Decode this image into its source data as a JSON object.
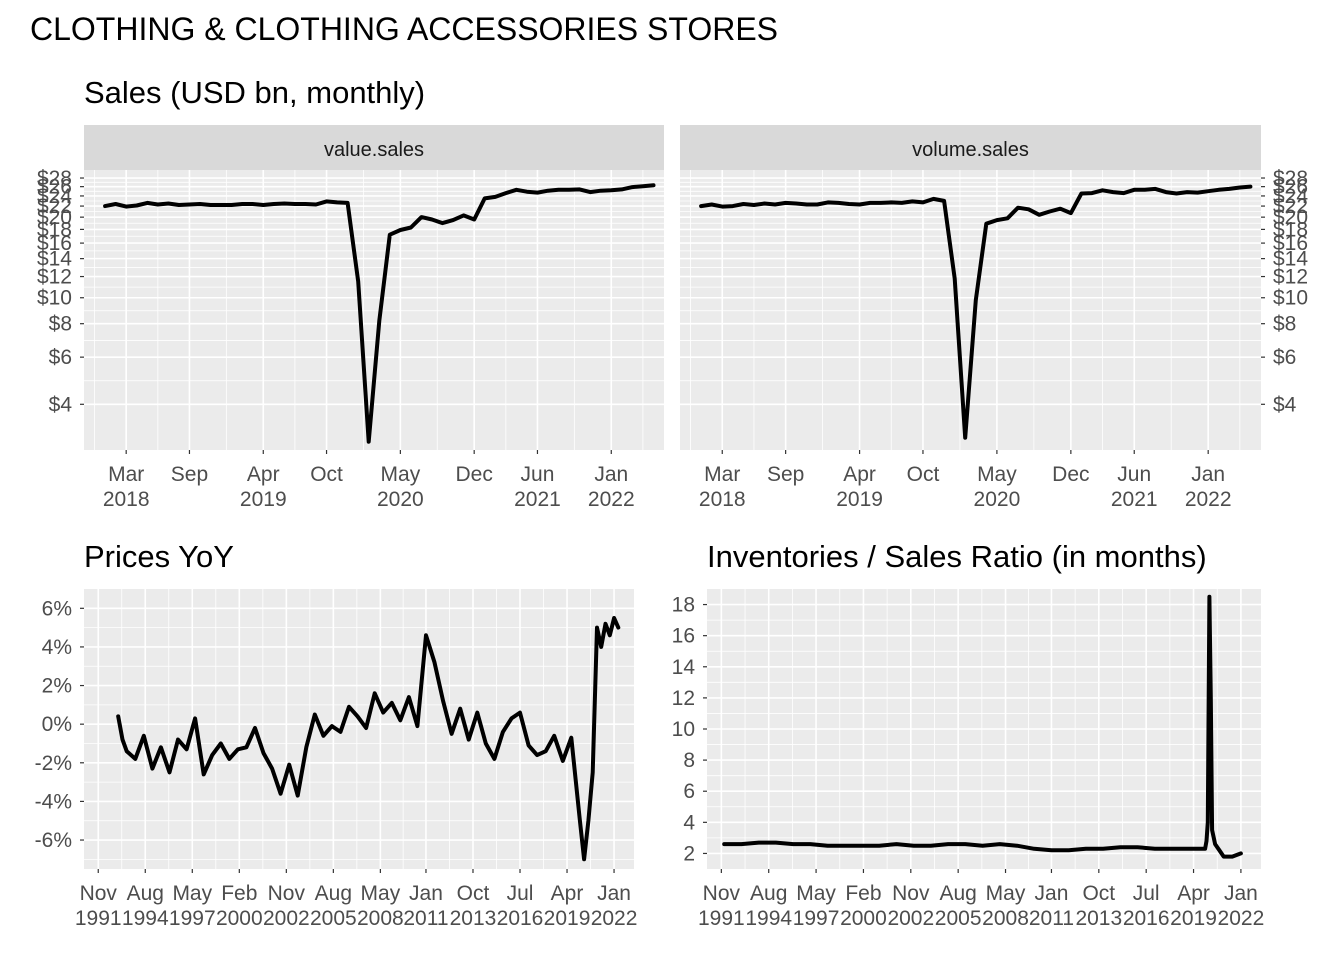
{
  "title": "CLOTHING & CLOTHING ACCESSORIES STORES",
  "chart_data": [
    {
      "id": "sales",
      "type": "line",
      "title": "Sales (USD bn, monthly)",
      "scale": "log",
      "y_axis": {
        "min": 2.7,
        "max": 30,
        "ticks": [
          4,
          6,
          8,
          10,
          12,
          14,
          16,
          18,
          20,
          22,
          24,
          26,
          28
        ],
        "tick_labels": [
          "$4",
          "$6",
          "$8",
          "$10",
          "$12",
          "$14",
          "$16",
          "$18",
          "$20",
          "$22",
          "$24",
          "$26",
          "$28"
        ]
      },
      "x_axis": {
        "min": "2017-11-01",
        "max": "2022-06-01",
        "ticks": [
          "2018-03-01",
          "2018-09-01",
          "2019-04-01",
          "2019-10-01",
          "2020-05-01",
          "2020-12-01",
          "2021-06-01",
          "2022-01-01"
        ],
        "tick_labels": [
          [
            "Mar",
            "2018"
          ],
          [
            "Sep",
            ""
          ],
          [
            "Apr",
            "2019"
          ],
          [
            "Oct",
            ""
          ],
          [
            "May",
            "2020"
          ],
          [
            "Dec",
            ""
          ],
          [
            "Jun",
            "2021"
          ],
          [
            "Jan",
            "2022"
          ]
        ]
      },
      "facets": [
        {
          "label": "value.sales",
          "x": [
            "2018-01-01",
            "2018-02-01",
            "2018-03-01",
            "2018-04-01",
            "2018-05-01",
            "2018-06-01",
            "2018-07-01",
            "2018-08-01",
            "2018-09-01",
            "2018-10-01",
            "2018-11-01",
            "2018-12-01",
            "2019-01-01",
            "2019-02-01",
            "2019-03-01",
            "2019-04-01",
            "2019-05-01",
            "2019-06-01",
            "2019-07-01",
            "2019-08-01",
            "2019-09-01",
            "2019-10-01",
            "2019-11-01",
            "2019-12-01",
            "2020-01-01",
            "2020-02-01",
            "2020-03-01",
            "2020-04-01",
            "2020-05-01",
            "2020-06-01",
            "2020-07-01",
            "2020-08-01",
            "2020-09-01",
            "2020-10-01",
            "2020-11-01",
            "2020-12-01",
            "2021-01-01",
            "2021-02-01",
            "2021-03-01",
            "2021-04-01",
            "2021-05-01",
            "2021-06-01",
            "2021-07-01",
            "2021-08-01",
            "2021-09-01",
            "2021-10-01",
            "2021-11-01",
            "2021-12-01",
            "2022-01-01",
            "2022-02-01",
            "2022-03-01",
            "2022-04-01",
            "2022-05-01"
          ],
          "y": [
            22.0,
            22.4,
            21.9,
            22.1,
            22.6,
            22.3,
            22.5,
            22.2,
            22.3,
            22.4,
            22.2,
            22.2,
            22.2,
            22.4,
            22.4,
            22.2,
            22.4,
            22.5,
            22.4,
            22.4,
            22.3,
            22.9,
            22.7,
            22.6,
            11.5,
            2.9,
            8.2,
            17.2,
            17.9,
            18.3,
            20.0,
            19.6,
            19.0,
            19.5,
            20.3,
            19.6,
            23.5,
            23.8,
            24.6,
            25.3,
            24.9,
            24.7,
            25.1,
            25.3,
            25.3,
            25.4,
            24.8,
            25.1,
            25.2,
            25.4,
            25.9,
            26.1,
            26.3
          ]
        },
        {
          "label": "volume.sales",
          "x": [
            "2018-01-01",
            "2018-02-01",
            "2018-03-01",
            "2018-04-01",
            "2018-05-01",
            "2018-06-01",
            "2018-07-01",
            "2018-08-01",
            "2018-09-01",
            "2018-10-01",
            "2018-11-01",
            "2018-12-01",
            "2019-01-01",
            "2019-02-01",
            "2019-03-01",
            "2019-04-01",
            "2019-05-01",
            "2019-06-01",
            "2019-07-01",
            "2019-08-01",
            "2019-09-01",
            "2019-10-01",
            "2019-11-01",
            "2019-12-01",
            "2020-01-01",
            "2020-02-01",
            "2020-03-01",
            "2020-04-01",
            "2020-05-01",
            "2020-06-01",
            "2020-07-01",
            "2020-08-01",
            "2020-09-01",
            "2020-10-01",
            "2020-11-01",
            "2020-12-01",
            "2021-01-01",
            "2021-02-01",
            "2021-03-01",
            "2021-04-01",
            "2021-05-01",
            "2021-06-01",
            "2021-07-01",
            "2021-08-01",
            "2021-09-01",
            "2021-10-01",
            "2021-11-01",
            "2021-12-01",
            "2022-01-01",
            "2022-02-01",
            "2022-03-01",
            "2022-04-01",
            "2022-05-01"
          ],
          "y": [
            22.0,
            22.3,
            21.9,
            22.0,
            22.4,
            22.2,
            22.5,
            22.3,
            22.6,
            22.5,
            22.3,
            22.3,
            22.7,
            22.6,
            22.4,
            22.3,
            22.6,
            22.6,
            22.7,
            22.6,
            22.9,
            22.7,
            23.4,
            23.0,
            11.8,
            3.0,
            9.8,
            18.9,
            19.5,
            19.8,
            21.7,
            21.4,
            20.4,
            21.0,
            21.5,
            20.7,
            24.5,
            24.6,
            25.2,
            24.8,
            24.6,
            25.3,
            25.3,
            25.5,
            24.8,
            24.5,
            24.8,
            24.7,
            25.0,
            25.3,
            25.5,
            25.8,
            26.0
          ]
        }
      ]
    },
    {
      "id": "prices",
      "type": "line",
      "title": "Prices YoY",
      "y_axis": {
        "min": -7.5,
        "max": 7.0,
        "ticks": [
          -6,
          -4,
          -2,
          0,
          2,
          4,
          6
        ],
        "tick_labels": [
          "-6%",
          "-4%",
          "-2%",
          "0%",
          "2%",
          "4%",
          "6%"
        ]
      },
      "x_axis": {
        "min": "1991-01-01",
        "max": "2023-03-01",
        "ticks": [
          "1991-11-01",
          "1994-08-01",
          "1997-05-01",
          "2000-02-01",
          "2002-11-01",
          "2005-08-01",
          "2008-05-01",
          "2011-01-01",
          "2013-10-01",
          "2016-07-01",
          "2019-04-01",
          "2022-01-01"
        ],
        "tick_labels": [
          [
            "Nov",
            "1991"
          ],
          [
            "Aug",
            "1994"
          ],
          [
            "May",
            "1997"
          ],
          [
            "Feb",
            "2000"
          ],
          [
            "Nov",
            "2002"
          ],
          [
            "Aug",
            "2005"
          ],
          [
            "May",
            "2008"
          ],
          [
            "Jan",
            "2011"
          ],
          [
            "Oct",
            "2013"
          ],
          [
            "Jul",
            "2016"
          ],
          [
            "Apr",
            "2019"
          ],
          [
            "Jan",
            "2022"
          ]
        ]
      },
      "x": [
        1993.0,
        1993.25,
        1993.5,
        1994.0,
        1994.5,
        1995.0,
        1995.5,
        1996.0,
        1996.5,
        1997.0,
        1997.5,
        1998.0,
        1998.5,
        1999.0,
        1999.5,
        2000.0,
        2000.5,
        2001.0,
        2001.5,
        2002.0,
        2002.5,
        2003.0,
        2003.5,
        2004.0,
        2004.5,
        2005.0,
        2005.5,
        2006.0,
        2006.5,
        2007.0,
        2007.5,
        2008.0,
        2008.5,
        2009.0,
        2009.5,
        2010.0,
        2010.5,
        2011.0,
        2011.5,
        2012.0,
        2012.5,
        2013.0,
        2013.5,
        2014.0,
        2014.5,
        2015.0,
        2015.5,
        2016.0,
        2016.5,
        2017.0,
        2017.5,
        2018.0,
        2018.5,
        2019.0,
        2019.5,
        2020.0,
        2020.25,
        2020.5,
        2020.75,
        2021.0,
        2021.25,
        2021.5,
        2021.75,
        2022.0,
        2022.25
      ],
      "y": [
        0.4,
        -0.8,
        -1.4,
        -1.8,
        -0.6,
        -2.3,
        -1.2,
        -2.5,
        -0.8,
        -1.3,
        0.3,
        -2.6,
        -1.6,
        -1.0,
        -1.8,
        -1.3,
        -1.2,
        -0.2,
        -1.5,
        -2.3,
        -3.6,
        -2.1,
        -3.7,
        -1.2,
        0.5,
        -0.6,
        -0.1,
        -0.4,
        0.9,
        0.4,
        -0.2,
        1.6,
        0.6,
        1.1,
        0.2,
        1.4,
        -0.1,
        4.6,
        3.2,
        1.2,
        -0.5,
        0.8,
        -0.8,
        0.6,
        -1.0,
        -1.8,
        -0.4,
        0.3,
        0.6,
        -1.1,
        -1.6,
        -1.4,
        -0.6,
        -1.9,
        -0.7,
        -5.0,
        -7.0,
        -5.0,
        -2.5,
        5.0,
        4.0,
        5.2,
        4.6,
        5.5,
        5.0
      ]
    },
    {
      "id": "inventories",
      "type": "line",
      "title": "Inventories / Sales Ratio (in months)",
      "y_axis": {
        "min": 1.0,
        "max": 19.0,
        "ticks": [
          2,
          4,
          6,
          8,
          10,
          12,
          14,
          16,
          18
        ],
        "tick_labels": [
          "2",
          "4",
          "6",
          "8",
          "10",
          "12",
          "14",
          "16",
          "18"
        ]
      },
      "x_axis": {
        "min": "1991-01-01",
        "max": "2023-03-01",
        "ticks": [
          "1991-11-01",
          "1994-08-01",
          "1997-05-01",
          "2000-02-01",
          "2002-11-01",
          "2005-08-01",
          "2008-05-01",
          "2011-01-01",
          "2013-10-01",
          "2016-07-01",
          "2019-04-01",
          "2022-01-01"
        ],
        "tick_labels": [
          [
            "Nov",
            "1991"
          ],
          [
            "Aug",
            "1994"
          ],
          [
            "May",
            "1997"
          ],
          [
            "Feb",
            "2000"
          ],
          [
            "Nov",
            "2002"
          ],
          [
            "Aug",
            "2005"
          ],
          [
            "May",
            "2008"
          ],
          [
            "Jan",
            "2011"
          ],
          [
            "Oct",
            "2013"
          ],
          [
            "Jul",
            "2016"
          ],
          [
            "Apr",
            "2019"
          ],
          [
            "Jan",
            "2022"
          ]
        ]
      },
      "x": [
        1992.0,
        1993.0,
        1994.0,
        1995.0,
        1996.0,
        1997.0,
        1998.0,
        1999.0,
        2000.0,
        2001.0,
        2002.0,
        2003.0,
        2004.0,
        2005.0,
        2006.0,
        2007.0,
        2008.0,
        2009.0,
        2010.0,
        2011.0,
        2012.0,
        2013.0,
        2014.0,
        2015.0,
        2016.0,
        2017.0,
        2018.0,
        2019.0,
        2019.92,
        2020.0,
        2020.08,
        2020.17,
        2020.25,
        2020.33,
        2020.5,
        2020.75,
        2021.0,
        2021.5,
        2022.0
      ],
      "y": [
        2.6,
        2.6,
        2.7,
        2.7,
        2.6,
        2.6,
        2.5,
        2.5,
        2.5,
        2.5,
        2.6,
        2.5,
        2.5,
        2.6,
        2.6,
        2.5,
        2.6,
        2.5,
        2.3,
        2.2,
        2.2,
        2.3,
        2.3,
        2.4,
        2.4,
        2.3,
        2.3,
        2.3,
        2.3,
        2.8,
        4.0,
        18.5,
        12.0,
        3.5,
        2.6,
        2.2,
        1.8,
        1.8,
        2.0
      ]
    }
  ]
}
